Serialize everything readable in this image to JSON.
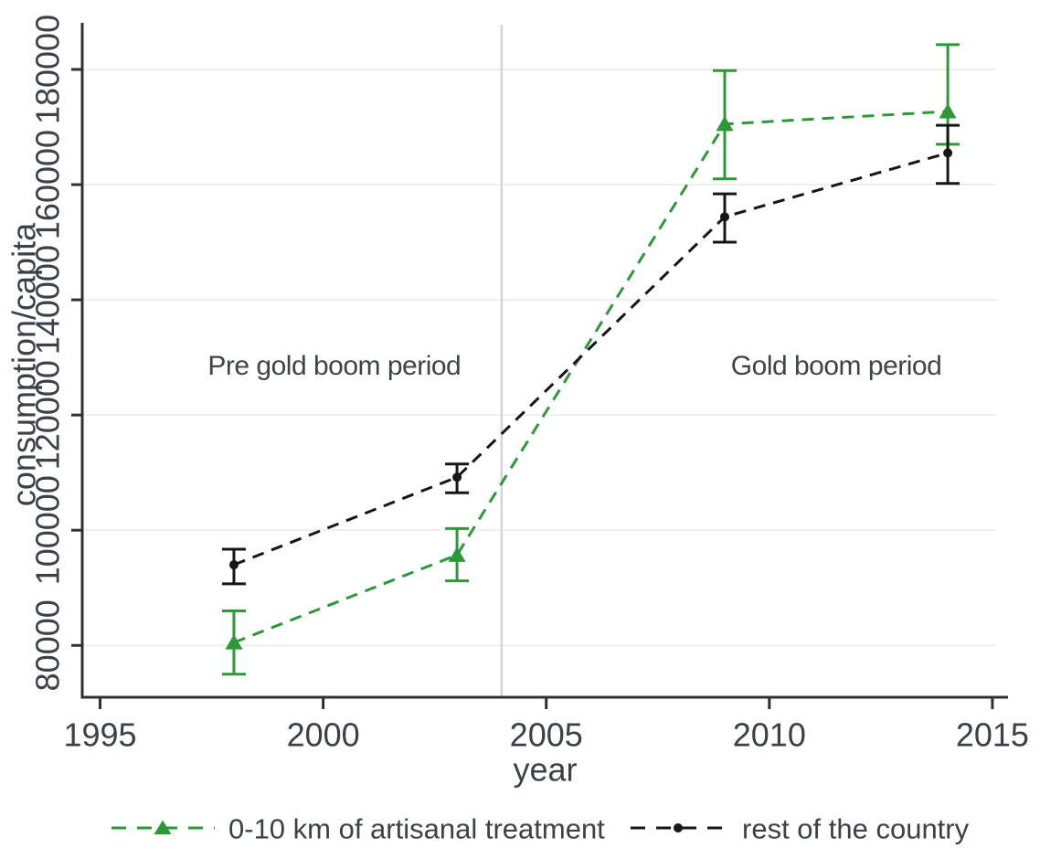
{
  "page": {
    "background_color": "#ffffff"
  },
  "chart_data": {
    "type": "line",
    "title": "",
    "xlabel": "year",
    "ylabel": "consumption/capita",
    "x": [
      1998,
      2003,
      2009,
      2014
    ],
    "series": [
      {
        "name": "0-10 km of artisanal treatment",
        "color": "#2c9939",
        "marker": "triangle",
        "line_style": "dashed",
        "values": [
          80500,
          95700,
          170500,
          172700
        ],
        "ci_low": [
          75000,
          91200,
          161000,
          167000
        ],
        "ci_high": [
          86000,
          100300,
          179800,
          184300
        ]
      },
      {
        "name": "rest of the country",
        "color": "#161616",
        "marker": "circle",
        "line_style": "dashed",
        "values": [
          94000,
          109200,
          154400,
          165500
        ],
        "ci_low": [
          90700,
          106500,
          150000,
          160200
        ],
        "ci_high": [
          96700,
          111500,
          158400,
          170300
        ]
      }
    ],
    "x_ticks": [
      1995,
      2000,
      2005,
      2010,
      2015
    ],
    "y_ticks": [
      80000,
      100000,
      120000,
      140000,
      160000,
      180000
    ],
    "xlim": [
      1994.6,
      2015.35
    ],
    "ylim": [
      71000,
      186500
    ],
    "reference_line": {
      "x": 2004,
      "color": "#d4d4d4"
    },
    "annotations": [
      {
        "id": "pre-gold-boom",
        "text": "Pre gold boom period",
        "x": 2000.25,
        "y": 128500
      },
      {
        "id": "gold-boom",
        "text": "Gold boom period",
        "x": 2011.5,
        "y": 128500
      }
    ],
    "legend_position": "bottom",
    "grid": "horizontal",
    "styles": {
      "text_color": "#3a4149",
      "axis_color": "#303030",
      "grid_color": "#ececec",
      "error_bars": true
    }
  }
}
